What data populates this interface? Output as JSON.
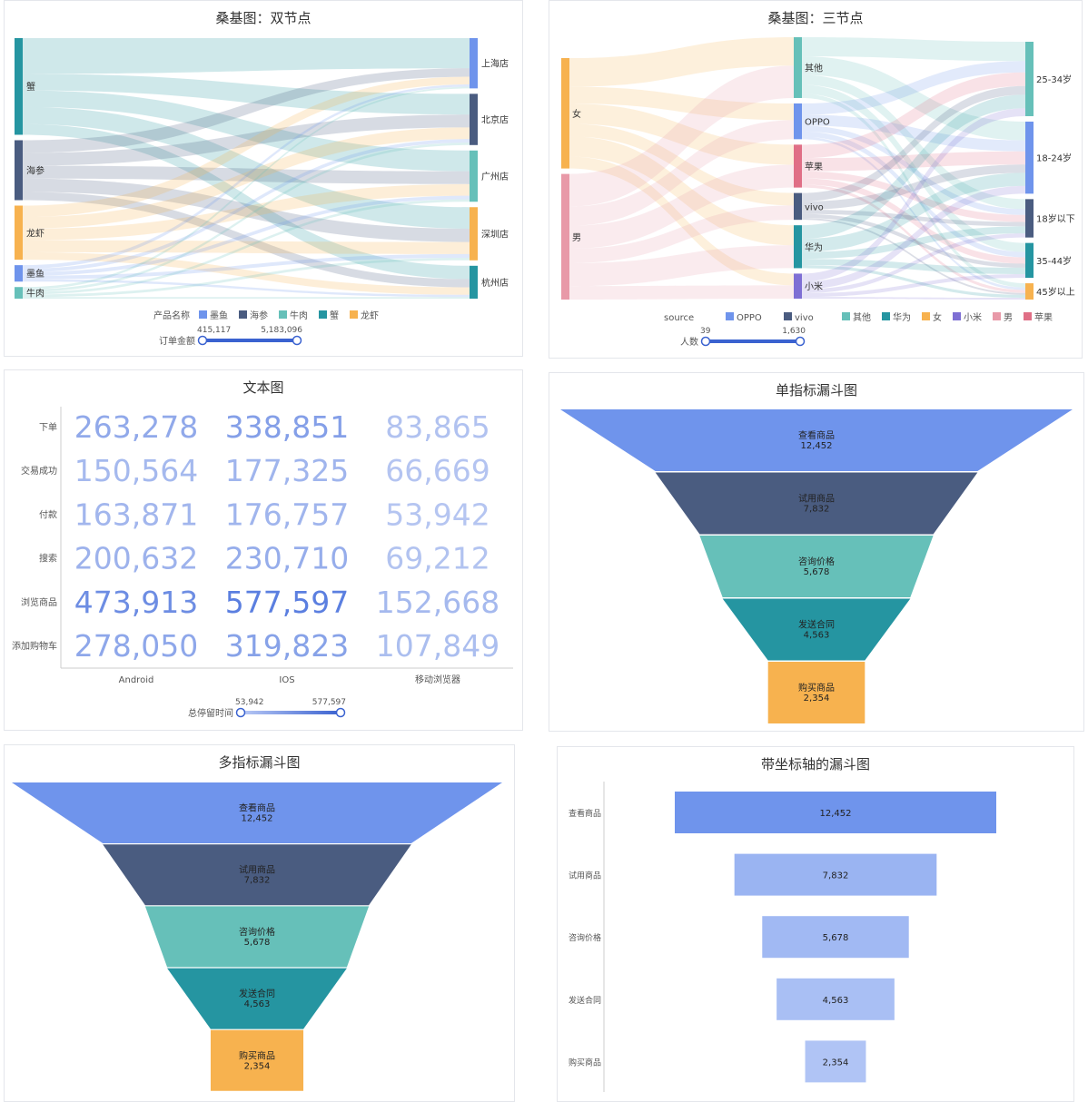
{
  "colors": {
    "blue": "#6f94ec",
    "navy": "#4a5c80",
    "teal": "#66c0b9",
    "darkteal": "#2595a1",
    "orange": "#f7b24f",
    "purple": "#7e6fd4",
    "pink": "#e899a8",
    "rose": "#e06f86"
  },
  "charts": {
    "sankey2": {
      "title": "桑基图：双节点",
      "chart_data": {
        "type": "sankey",
        "title": "桑基图：双节点",
        "sources": [
          {
            "label": "蟹",
            "weight": 1.0
          },
          {
            "label": "海参",
            "weight": 0.62
          },
          {
            "label": "龙虾",
            "weight": 0.56
          },
          {
            "label": "墨鱼",
            "weight": 0.17
          },
          {
            "label": "牛肉",
            "weight": 0.12
          }
        ],
        "targets": [
          {
            "label": "上海店",
            "weight": 0.52
          },
          {
            "label": "北京店",
            "weight": 0.53
          },
          {
            "label": "广州店",
            "weight": 0.53
          },
          {
            "label": "深圳店",
            "weight": 0.55
          },
          {
            "label": "杭州店",
            "weight": 0.34
          }
        ],
        "legend": {
          "title": "产品名称",
          "items": [
            "墨鱼",
            "海参",
            "牛肉",
            "蟹",
            "龙虾"
          ]
        },
        "range": {
          "label": "订单金额",
          "min": "415,117",
          "max": "5,183,096"
        }
      }
    },
    "sankey3": {
      "title": "桑基图：三节点",
      "chart_data": {
        "type": "sankey",
        "title": "桑基图：三节点",
        "col1": [
          {
            "label": "女",
            "weight": 0.58
          },
          {
            "label": "男",
            "weight": 0.66
          }
        ],
        "col2": [
          {
            "label": "其他",
            "weight": 0.34
          },
          {
            "label": "OPPO",
            "weight": 0.2
          },
          {
            "label": "苹果",
            "weight": 0.24
          },
          {
            "label": "vivo",
            "weight": 0.15
          },
          {
            "label": "华为",
            "weight": 0.24
          },
          {
            "label": "小米",
            "weight": 0.14
          }
        ],
        "col3": [
          {
            "label": "25-34岁",
            "weight": 0.64
          },
          {
            "label": "18-24岁",
            "weight": 0.62
          },
          {
            "label": "18岁以下",
            "weight": 0.33
          },
          {
            "label": "35-44岁",
            "weight": 0.3
          },
          {
            "label": "45岁以上",
            "weight": 0.14
          }
        ],
        "legend": {
          "title": "source",
          "items": [
            "OPPO",
            "vivo",
            "其他",
            "华为",
            "女",
            "小米",
            "男",
            "苹果"
          ]
        },
        "range": {
          "label": "人数",
          "min": "39",
          "max": "1,630"
        }
      }
    },
    "textchart": {
      "title": "文本图",
      "chart_data": {
        "type": "table",
        "title": "文本图",
        "columns": [
          "Android",
          "IOS",
          "移动浏览器"
        ],
        "rows": [
          {
            "label": "下单",
            "values": [
              263278,
              338851,
              83865
            ],
            "display": [
              "263,278",
              "338,851",
              "83,865"
            ]
          },
          {
            "label": "交易成功",
            "values": [
              150564,
              177325,
              66669
            ],
            "display": [
              "150,564",
              "177,325",
              "66,669"
            ]
          },
          {
            "label": "付款",
            "values": [
              163871,
              176757,
              53942
            ],
            "display": [
              "163,871",
              "176,757",
              "53,942"
            ]
          },
          {
            "label": "搜索",
            "values": [
              200632,
              230710,
              69212
            ],
            "display": [
              "200,632",
              "230,710",
              "69,212"
            ]
          },
          {
            "label": "浏览商品",
            "values": [
              473913,
              577597,
              152668
            ],
            "display": [
              "473,913",
              "577,597",
              "152,668"
            ]
          },
          {
            "label": "添加购物车",
            "values": [
              278050,
              319823,
              107849
            ],
            "display": [
              "278,050",
              "319,823",
              "107,849"
            ]
          }
        ],
        "range": {
          "label": "总停留时间",
          "min": "53,942",
          "max": "577,597",
          "min_value": 53942,
          "max_value": 577597
        }
      }
    },
    "funnel1": {
      "title": "单指标漏斗图",
      "chart_data": {
        "type": "funnel",
        "title": "单指标漏斗图",
        "stages": [
          "查看商品",
          "试用商品",
          "咨询价格",
          "发送合同",
          "购买商品"
        ],
        "values": [
          12452,
          7832,
          5678,
          4563,
          2354
        ],
        "display": [
          "12,452",
          "7,832",
          "5,678",
          "4,563",
          "2,354"
        ]
      }
    },
    "funnel2": {
      "title": "多指标漏斗图",
      "chart_data": {
        "type": "funnel",
        "title": "多指标漏斗图",
        "stages": [
          "查看商品",
          "试用商品",
          "咨询价格",
          "发送合同",
          "购买商品"
        ],
        "values": [
          12452,
          7832,
          5678,
          4563,
          2354
        ],
        "display": [
          "12,452",
          "7,832",
          "5,678",
          "4,563",
          "2,354"
        ]
      }
    },
    "funnel3": {
      "title": "带坐标轴的漏斗图",
      "chart_data": {
        "type": "bar",
        "title": "带坐标轴的漏斗图",
        "categories": [
          "查看商品",
          "试用商品",
          "咨询价格",
          "发送合同",
          "购买商品"
        ],
        "values": [
          12452,
          7832,
          5678,
          4563,
          2354
        ],
        "display": [
          "12,452",
          "7,832",
          "5,678",
          "4,563",
          "2,354"
        ]
      }
    }
  }
}
